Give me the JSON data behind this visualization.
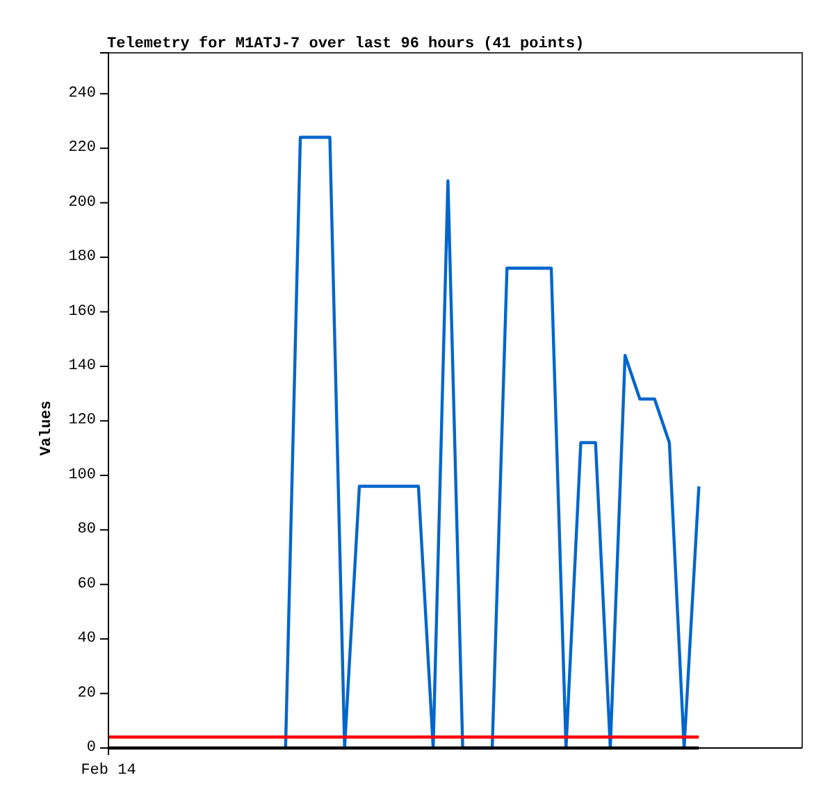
{
  "chart_data": {
    "type": "line",
    "title": "Telemetry for M1ATJ-7 over last 96 hours (41 points)",
    "ylabel": "Values",
    "categories": [
      "Feb 14",
      null,
      null,
      null,
      null,
      null,
      null,
      null,
      null,
      null,
      null,
      null,
      null,
      null,
      null,
      null,
      null,
      null,
      null,
      null,
      null,
      null,
      null,
      null,
      null,
      null,
      null,
      null,
      null,
      null,
      null,
      null,
      null,
      null,
      null,
      null,
      null,
      null,
      null,
      null,
      null,
      null,
      null,
      null,
      null,
      null,
      null,
      null
    ],
    "series": [
      {
        "color": "#0066cc",
        "values": [
          null,
          null,
          null,
          null,
          null,
          null,
          null,
          null,
          null,
          null,
          null,
          null,
          0,
          224,
          224,
          224,
          0,
          96,
          96,
          96,
          96,
          96,
          0,
          208,
          0,
          0,
          0,
          176,
          176,
          176,
          176,
          0,
          112,
          112,
          0,
          144,
          128,
          128,
          112,
          0,
          96,
          null,
          null,
          null,
          null,
          null,
          null,
          null
        ]
      },
      {
        "color": "#ff0000",
        "values": [
          4,
          4,
          4,
          4,
          4,
          4,
          4,
          4,
          4,
          4,
          4,
          4,
          4,
          4,
          4,
          4,
          4,
          4,
          4,
          4,
          4,
          4,
          4,
          4,
          4,
          4,
          4,
          4,
          4,
          4,
          4,
          4,
          4,
          4,
          4,
          4,
          4,
          4,
          4,
          4,
          4,
          null,
          null,
          null,
          null,
          null,
          null,
          null
        ]
      },
      {
        "color": "#000000",
        "values": [
          0,
          0,
          0,
          0,
          0,
          0,
          0,
          0,
          0,
          0,
          0,
          0,
          0,
          0,
          0,
          0,
          0,
          0,
          0,
          0,
          0,
          0,
          0,
          0,
          0,
          0,
          0,
          0,
          0,
          0,
          0,
          0,
          0,
          0,
          0,
          0,
          0,
          0,
          0,
          0,
          0,
          null,
          null,
          null,
          null,
          null,
          null,
          null
        ]
      }
    ],
    "ylim": [
      0,
      255
    ],
    "yticks": [
      0,
      20,
      40,
      60,
      80,
      100,
      120,
      140,
      160,
      180,
      200,
      220,
      240
    ],
    "grid": false,
    "marker": "none",
    "line_style": "solid"
  }
}
